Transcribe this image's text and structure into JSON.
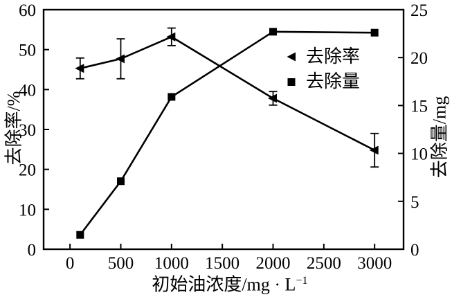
{
  "chart_data": {
    "type": "line",
    "title": "",
    "xlabel": "初始油浓度/mg · L",
    "xlabel_sup": "−1",
    "x": [
      100,
      500,
      1000,
      2000,
      3000
    ],
    "x_ticks": [
      0,
      500,
      1000,
      1500,
      2000,
      2500,
      3000
    ],
    "xlim": [
      -260,
      3285
    ],
    "grid": false,
    "left_axis": {
      "label": "去除率/%",
      "lim": [
        0,
        60
      ],
      "ticks": [
        0,
        10,
        20,
        30,
        40,
        50,
        60
      ]
    },
    "right_axis": {
      "label": "去除量/mg",
      "lim": [
        0,
        25
      ],
      "ticks": [
        0,
        5,
        10,
        15,
        20,
        25
      ]
    },
    "series": [
      {
        "name": "去除率",
        "axis": "left",
        "marker": "triangle-left",
        "values": [
          45.3,
          47.7,
          53.2,
          37.8,
          24.8
        ],
        "yerr": [
          2.6,
          5.0,
          2.2,
          1.7,
          4.2
        ]
      },
      {
        "name": "去除量",
        "axis": "right",
        "marker": "square",
        "values": [
          1.5,
          7.1,
          15.9,
          22.7,
          22.6
        ],
        "yerr": [
          0,
          0,
          0,
          0,
          0
        ]
      }
    ],
    "legend": {
      "position": "inside-upper-right"
    },
    "colors": {
      "line": "#000000",
      "background": "#ffffff"
    }
  }
}
